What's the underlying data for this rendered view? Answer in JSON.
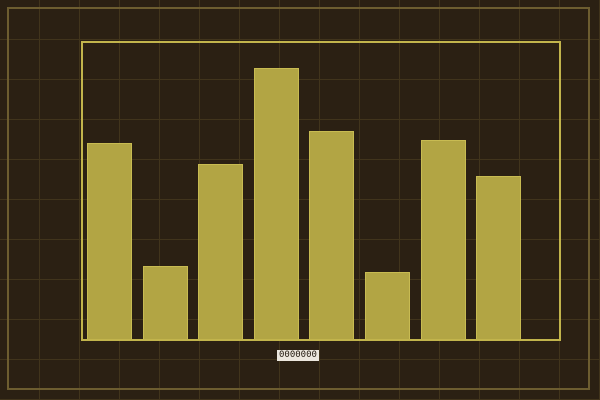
{
  "chart_data": {
    "type": "bar",
    "values": [
      66,
      25,
      59,
      91,
      70,
      23,
      67,
      55
    ],
    "title": "",
    "xlabel": "",
    "ylabel": "",
    "ylim": [
      0,
      100
    ],
    "grid": true,
    "legend": false,
    "tick_labels_visible": false,
    "bar_count": 8,
    "annotations": [
      "0000000"
    ]
  },
  "footer_label": {
    "text": "0000000"
  },
  "colors": {
    "background": "#2b2013",
    "grid_line": "#41341c",
    "outer_border": "#6d5d30",
    "chart_frame": "#c2b44c",
    "bar_fill": "#b2a544",
    "bar_edge": "#c8bb52",
    "label_background": "#ece7de",
    "label_text": "#231a10"
  }
}
